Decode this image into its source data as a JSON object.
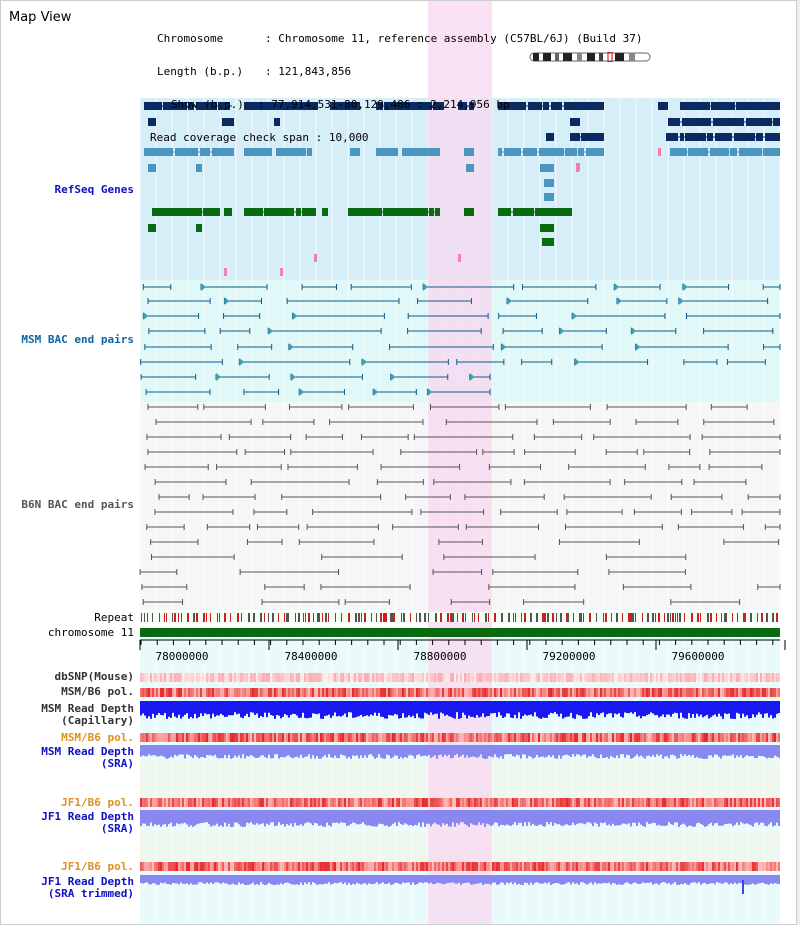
{
  "app": {
    "title": "Map View"
  },
  "info": {
    "chromosome_label": "Chromosome",
    "chromosome_value": ": Chromosome 11, reference assembly (C57BL/6J) (Build 37)",
    "length_label": "Length (b.p.)",
    "length_value": ": 121,843,856",
    "show_label": "Show (b.p.)",
    "show_value": ": 77,914,531-80,129,486 : 2,214,956 bp",
    "coverage_label": "Read coverage check span",
    "coverage_value": ": 10,000"
  },
  "tracks": {
    "refseq": "RefSeq Genes",
    "msm_bac": "MSM BAC end pairs",
    "b6n_bac": "B6N BAC end pairs",
    "repeat": "Repeat",
    "chromosome": "chromosome 11",
    "dbsnp": "dbSNP(Mouse)",
    "msm_b6_pol": "MSM/B6 pol.",
    "msm_depth_cap_1": "MSM Read Depth",
    "msm_depth_cap_2": "(Capillary)",
    "msm_b6_pol_2": "MSM/B6 pol.",
    "msm_depth_sra_1": "MSM Read Depth",
    "msm_depth_sra_2": "(SRA)",
    "jf1_b6_pol": "JF1/B6 pol.",
    "jf1_depth_sra_1": "JF1 Read Depth",
    "jf1_depth_sra_2": "(SRA)",
    "jf1_b6_pol_2": "JF1/B6 pol.",
    "jf1_depth_trim_1": "JF1 Read Depth",
    "jf1_depth_trim_2": "(SRA trimmed)"
  },
  "axis": {
    "ticks": [
      "78000000",
      "78400000",
      "78800000",
      "79200000",
      "79600000",
      "80000000"
    ]
  },
  "colors": {
    "refseq_bg": "#d6eef8",
    "msm_bg": "#e0f8f8",
    "b6n_bg": "#f6f6f8",
    "highlight": "#f8d8f0",
    "gene_dark": "#0a2a60",
    "gene_light": "#4a96c0",
    "gene_green": "#0a6a10",
    "chromosome": "#0a6a10",
    "depth_blue": "#1818f0",
    "depth_sra": "#8888f0"
  }
}
